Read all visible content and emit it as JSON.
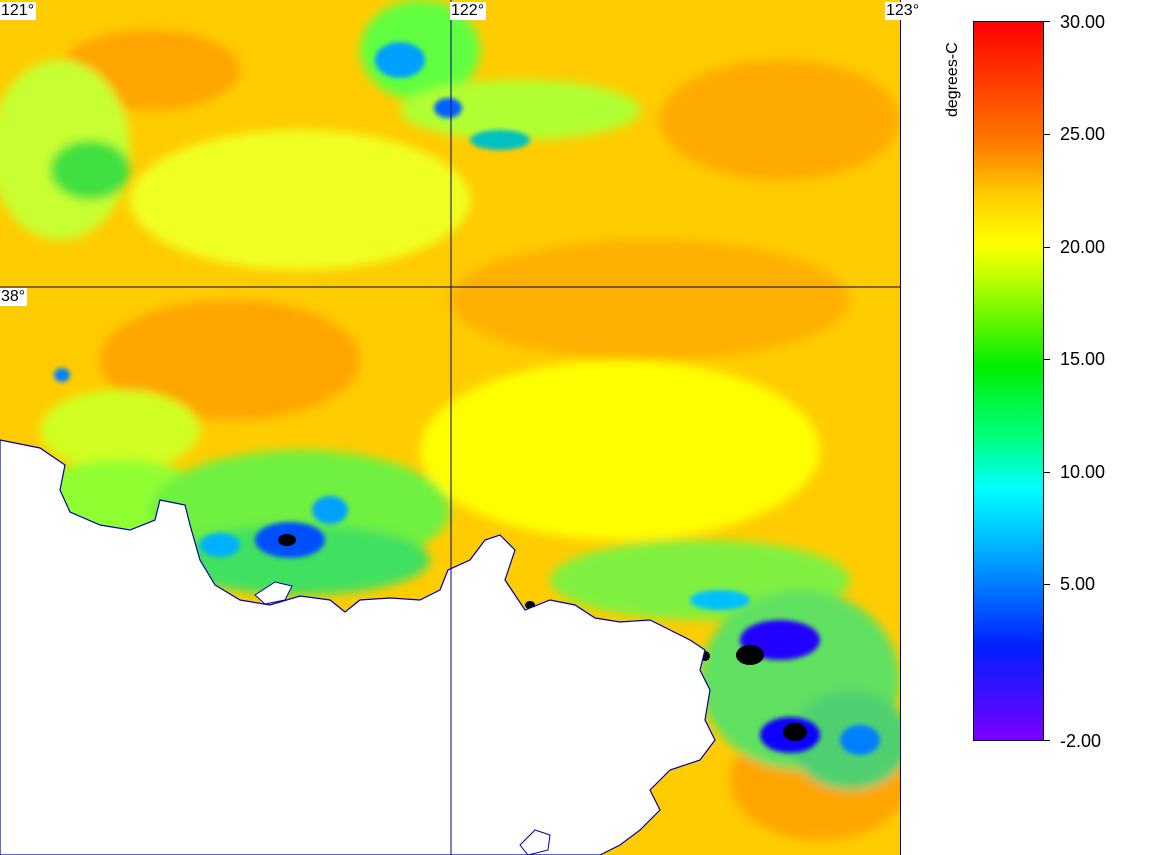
{
  "map": {
    "lon_labels": [
      "121°",
      "122°",
      "123°"
    ],
    "lat_labels": [
      "38°"
    ],
    "grid_color": "#000080",
    "land_color": "#ffffff"
  },
  "legend": {
    "title": "degrees-C",
    "tick_labels": [
      "30.00",
      "25.00",
      "20.00",
      "15.00",
      "10.00",
      "5.00",
      "-2.00"
    ],
    "range": [
      -2,
      30
    ]
  },
  "colors": {
    "max": "#ff0000",
    "warm": "#ff9900",
    "mid": "#ffff00",
    "green": "#00ee00",
    "cyan": "#00ffff",
    "blue": "#0000ff",
    "min": "#7a00ff"
  }
}
